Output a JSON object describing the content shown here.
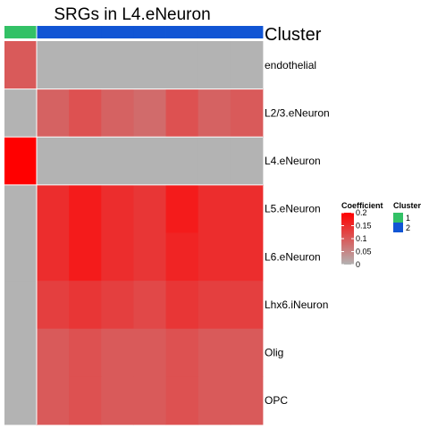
{
  "chart_data": {
    "type": "heatmap",
    "title": "SRGs in L4.eNeuron",
    "annotation_title": "Cluster",
    "rows": [
      "endothelial",
      "L2/3.eNeuron",
      "L4.eNeuron",
      "L5.eNeuron",
      "L6.eNeuron",
      "Lhx6.iNeuron",
      "Olig",
      "OPC"
    ],
    "column_clusters": [
      1,
      2,
      2,
      2,
      2,
      2,
      2,
      2
    ],
    "values": [
      [
        0.1,
        0.0,
        0.0,
        0.0,
        0.0,
        0.0,
        0.0,
        0.0
      ],
      [
        0.0,
        0.09,
        0.11,
        0.09,
        0.08,
        0.11,
        0.09,
        0.1
      ],
      [
        0.2,
        0.0,
        0.0,
        0.0,
        0.0,
        0.0,
        0.0,
        0.0
      ],
      [
        0.0,
        0.15,
        0.17,
        0.15,
        0.14,
        0.17,
        0.15,
        0.15
      ],
      [
        0.0,
        0.15,
        0.17,
        0.15,
        0.14,
        0.16,
        0.15,
        0.15
      ],
      [
        0.0,
        0.13,
        0.14,
        0.13,
        0.12,
        0.14,
        0.13,
        0.13
      ],
      [
        0.0,
        0.1,
        0.11,
        0.1,
        0.1,
        0.11,
        0.1,
        0.1
      ],
      [
        0.0,
        0.1,
        0.11,
        0.1,
        0.1,
        0.11,
        0.1,
        0.1
      ]
    ],
    "color_legend": {
      "title": "Coefficient",
      "ticks": [
        "0.2",
        "0.15",
        "0.1",
        "0.05",
        "0"
      ],
      "range": [
        0,
        0.2
      ],
      "low_color": "#b3b3b3",
      "high_color": "#ff0000"
    },
    "cluster_legend": {
      "title": "Cluster",
      "items": [
        {
          "label": "1",
          "color": "#33c166"
        },
        {
          "label": "2",
          "color": "#1155d4"
        }
      ]
    }
  }
}
